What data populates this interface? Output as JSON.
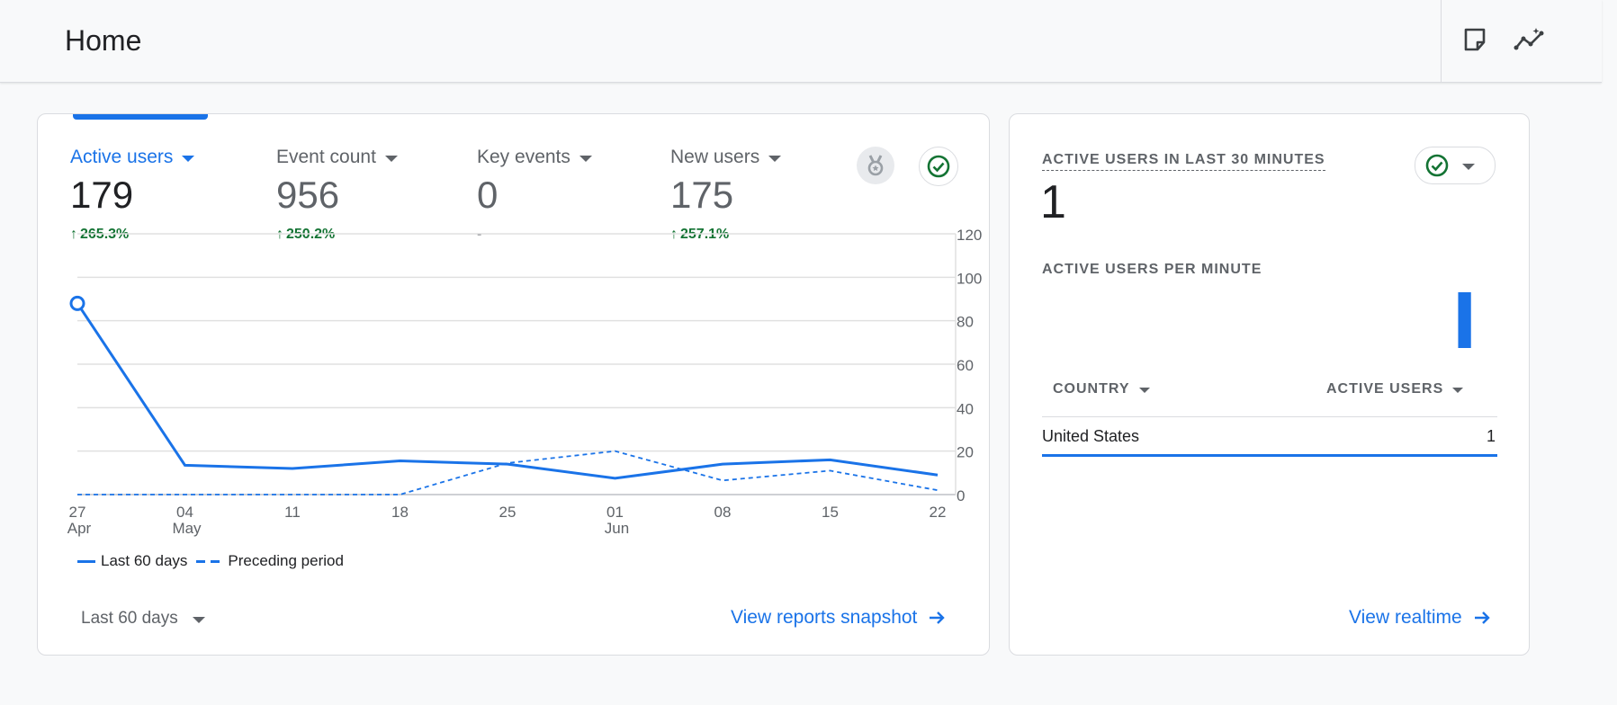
{
  "header": {
    "title": "Home",
    "icons": [
      "notes-icon",
      "insights-icon"
    ]
  },
  "overview": {
    "metrics": [
      {
        "label": "Active users",
        "value": "179",
        "change": "265.3%",
        "trend": "up",
        "active": true
      },
      {
        "label": "Event count",
        "value": "956",
        "change": "250.2%",
        "trend": "up",
        "active": false
      },
      {
        "label": "Key events",
        "value": "0",
        "change": "-",
        "trend": "none",
        "active": false
      },
      {
        "label": "New users",
        "value": "175",
        "change": "257.1%",
        "trend": "up",
        "active": false
      }
    ],
    "badge_icons": [
      "medal-icon",
      "check-circle-icon"
    ],
    "legend": {
      "current": "Last 60 days",
      "previous": "Preceding period"
    },
    "date_range": "Last 60 days",
    "link": "View reports snapshot"
  },
  "chart_data": {
    "type": "line",
    "x_ticks": [
      {
        "day": "27",
        "month": "Apr"
      },
      {
        "day": "04",
        "month": "May"
      },
      {
        "day": "11",
        "month": ""
      },
      {
        "day": "18",
        "month": ""
      },
      {
        "day": "25",
        "month": ""
      },
      {
        "day": "01",
        "month": "Jun"
      },
      {
        "day": "08",
        "month": ""
      },
      {
        "day": "15",
        "month": ""
      },
      {
        "day": "22",
        "month": ""
      }
    ],
    "y_ticks": [
      "120",
      "100",
      "80",
      "60",
      "40",
      "20",
      "0"
    ],
    "ylim": [
      0,
      120
    ],
    "series": [
      {
        "name": "Last 60 days",
        "style": "solid",
        "color": "#1a73e8",
        "values": [
          88,
          13.5,
          12,
          15.5,
          14,
          7.5,
          14,
          16,
          9
        ]
      },
      {
        "name": "Preceding period",
        "style": "dashed",
        "color": "#1a73e8",
        "values": [
          0,
          0,
          0,
          0,
          14.5,
          20,
          6.5,
          11,
          2
        ]
      }
    ],
    "grid": true,
    "legend_position": "bottom-left"
  },
  "realtime": {
    "title": "ACTIVE USERS IN LAST 30 MINUTES",
    "value": "1",
    "per_minute_label": "ACTIVE USERS PER MINUTE",
    "per_minute_values": [
      0,
      0,
      0,
      0,
      0,
      0,
      0,
      0,
      0,
      0,
      0,
      0,
      0,
      0,
      0,
      0,
      0,
      0,
      0,
      0,
      0,
      0,
      0,
      0,
      0,
      0,
      0,
      0,
      1,
      0
    ],
    "table": {
      "columns": [
        "COUNTRY",
        "ACTIVE USERS"
      ],
      "rows": [
        {
          "country": "United States",
          "users": "1",
          "share": 1.0
        }
      ]
    },
    "link": "View realtime"
  },
  "colors": {
    "accent": "#1a73e8",
    "positive": "#137333",
    "muted": "#5f6368",
    "border": "#dadce0"
  }
}
